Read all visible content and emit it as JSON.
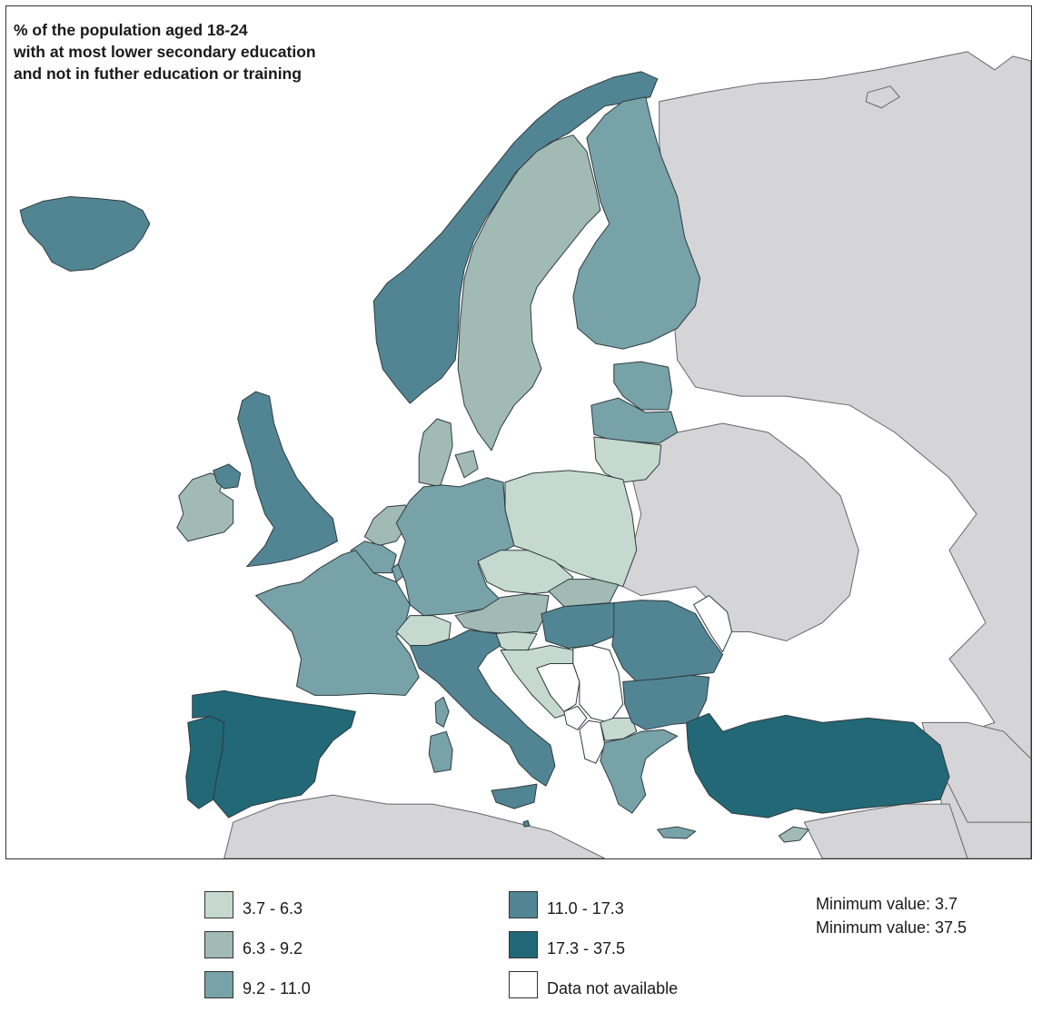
{
  "title_lines": [
    "% of the population aged 18-24",
    "with at most lower secondary education",
    "and not in futher education or training"
  ],
  "colors": {
    "class1": "#c6d9cf",
    "class2": "#a2bab4",
    "class3": "#77a2a8",
    "class4": "#528593",
    "class5": "#226877",
    "na": "#ffffff",
    "non_eu": "#d5d5d8"
  },
  "legend": {
    "class1": "3.7 - 6.3",
    "class2": "6.3 - 9.2",
    "class3": "9.2 - 11.0",
    "class4": "11.0 - 17.3",
    "class5": "17.3 - 37.5",
    "na": "Data not available"
  },
  "stats": {
    "min": "Minimum value: 3.7",
    "max": "Minimum value: 37.5"
  },
  "region_classes": {
    "iceland": "class4",
    "norway": "class4",
    "sweden": "class2",
    "finland": "class3",
    "estonia": "class3",
    "latvia": "class3",
    "lithuania": "class1",
    "denmark": "class2",
    "ireland": "class2",
    "northern-ireland": "class4",
    "uk": "class4",
    "netherlands": "class2",
    "belgium": "class3",
    "luxembourg": "class3",
    "france": "class3",
    "germany": "class3",
    "poland": "class1",
    "czechia": "class1",
    "slovakia": "class2",
    "austria": "class2",
    "switzerland": "class1",
    "hungary": "class4",
    "slovenia": "class1",
    "croatia": "class1",
    "romania": "class4",
    "bulgaria": "class4",
    "italy": "class4",
    "corsica": "class3",
    "sardinia": "class3",
    "sicily": "class4",
    "spain": "class5",
    "portugal": "class5",
    "greece": "class3",
    "crete": "class3",
    "cyprus": "class2",
    "turkey": "class5",
    "malta": "class4",
    "north-macedonia": "class1",
    "bosnia": "na",
    "serbia": "na",
    "montenegro": "na",
    "albania": "na",
    "moldova": "na"
  }
}
